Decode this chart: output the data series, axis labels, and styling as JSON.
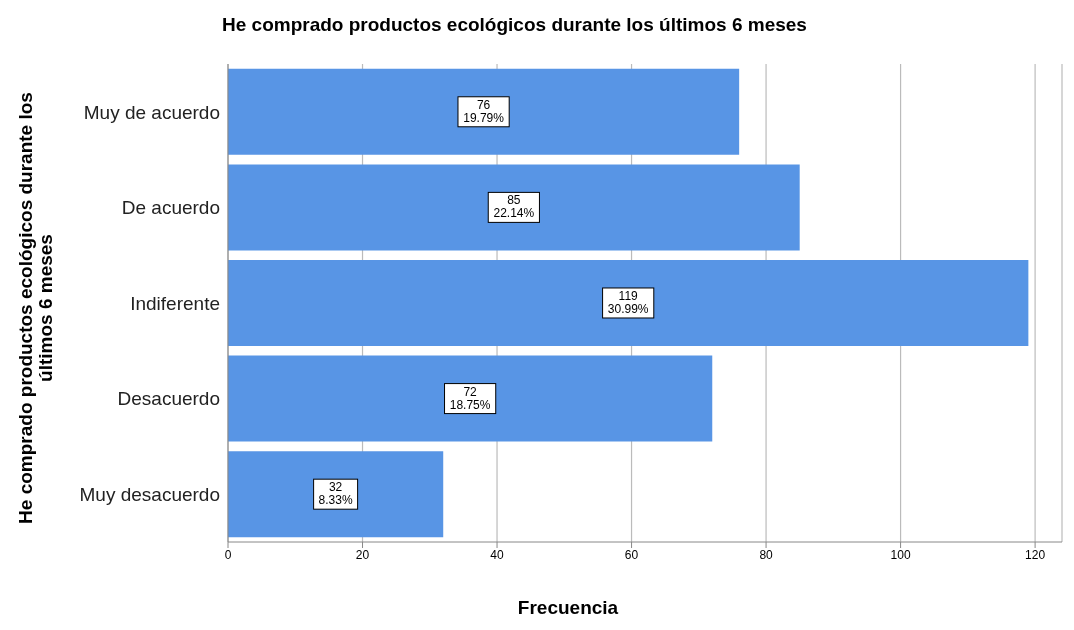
{
  "chart_data": {
    "type": "bar",
    "orientation": "horizontal",
    "title": "He comprado productos ecológicos durante los últimos 6 meses",
    "xlabel": "Frecuencia",
    "ylabel": "He comprado productos ecológicos durante los últimos 6 meses",
    "categories": [
      "Muy de acuerdo",
      "De acuerdo",
      "Indiferente",
      "Desacuerdo",
      "Muy desacuerdo"
    ],
    "values": [
      76,
      85,
      119,
      72,
      32
    ],
    "value_labels": [
      "76\n19.79%",
      "85\n22.14%",
      "119\n30.99%",
      "72\n18.75%",
      "32\n8.33%"
    ],
    "color": "#5895e5",
    "xlim": [
      0,
      124
    ],
    "xticks": [
      0,
      20,
      40,
      60,
      80,
      100,
      120
    ],
    "grid": "x"
  }
}
